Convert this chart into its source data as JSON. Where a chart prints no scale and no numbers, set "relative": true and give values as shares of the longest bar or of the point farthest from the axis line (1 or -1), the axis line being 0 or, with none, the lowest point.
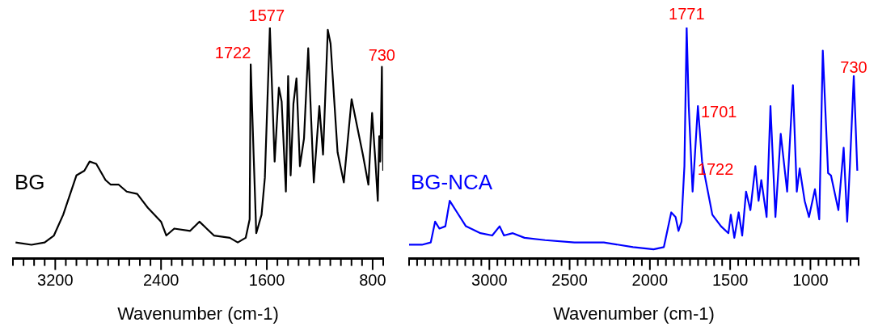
{
  "chart_data": [
    {
      "type": "line",
      "relative": true,
      "xlabel": "Wavenumber (cm-1)",
      "xlim": [
        3520,
        720
      ],
      "xticks": [
        {
          "value": 3520,
          "label": null
        },
        {
          "value": 3440,
          "label": null
        },
        {
          "value": 3360,
          "label": null
        },
        {
          "value": 3280,
          "label": null
        },
        3200,
        {
          "value": 3120,
          "label": null
        },
        {
          "value": 3040,
          "label": null
        },
        {
          "value": 2960,
          "label": null
        },
        {
          "value": 2880,
          "label": null
        },
        {
          "value": 2800,
          "label": null
        },
        {
          "value": 2720,
          "label": null
        },
        {
          "value": 2640,
          "label": null
        },
        {
          "value": 2560,
          "label": null
        },
        {
          "value": 2480,
          "label": null
        },
        2400,
        {
          "value": 2320,
          "label": null
        },
        {
          "value": 2240,
          "label": null
        },
        {
          "value": 2160,
          "label": null
        },
        {
          "value": 2080,
          "label": null
        },
        {
          "value": 2000,
          "label": null
        },
        {
          "value": 1920,
          "label": null
        },
        {
          "value": 1840,
          "label": null
        },
        {
          "value": 1760,
          "label": null
        },
        {
          "value": 1680,
          "label": null
        },
        1600,
        {
          "value": 1520,
          "label": null
        },
        {
          "value": 1440,
          "label": null
        },
        {
          "value": 1360,
          "label": null
        },
        {
          "value": 1280,
          "label": null
        },
        {
          "value": 1200,
          "label": null
        },
        {
          "value": 1120,
          "label": null
        },
        {
          "value": 1040,
          "label": null
        },
        {
          "value": 960,
          "label": null
        },
        {
          "value": 880,
          "label": null
        },
        800,
        {
          "value": 720,
          "label": null
        }
      ],
      "x": [
        3500,
        3380,
        3280,
        3210,
        3140,
        3040,
        2980,
        2940,
        2890,
        2820,
        2780,
        2720,
        2660,
        2580,
        2500,
        2400,
        2360,
        2300,
        2180,
        2110,
        2000,
        1880,
        1820,
        1760,
        1730,
        1722,
        1700,
        1680,
        1640,
        1615,
        1577,
        1541,
        1509,
        1488,
        1456,
        1439,
        1420,
        1399,
        1376,
        1350,
        1319,
        1287,
        1245,
        1203,
        1175,
        1139,
        1118,
        1065,
        1018,
        959,
        874,
        832,
        804,
        779,
        761,
        750,
        742,
        730,
        726,
        723,
        720
      ],
      "series": [
        {
          "name": "BG",
          "color": "#000000",
          "values": [
            0.07,
            0.06,
            0.07,
            0.1,
            0.19,
            0.36,
            0.38,
            0.42,
            0.41,
            0.34,
            0.32,
            0.32,
            0.29,
            0.28,
            0.22,
            0.16,
            0.1,
            0.13,
            0.12,
            0.16,
            0.1,
            0.09,
            0.07,
            0.09,
            0.17,
            0.84,
            0.45,
            0.11,
            0.19,
            0.35,
            1,
            0.42,
            0.74,
            0.68,
            0.29,
            0.79,
            0.36,
            0.67,
            0.78,
            0.4,
            0.52,
            0.91,
            0.33,
            0.66,
            0.45,
            0.99,
            0.93,
            0.46,
            0.33,
            0.69,
            0.45,
            0.32,
            0.63,
            0.42,
            0.25,
            0.53,
            0.42,
            0.83,
            0.52,
            0.59,
            0.38
          ]
        }
      ],
      "annotations": [
        {
          "text": "1722",
          "x": 1722,
          "y": 0.84
        },
        {
          "text": "1577",
          "x": 1577,
          "y": 1
        },
        {
          "text": "730",
          "x": 730,
          "y": 0.83
        }
      ]
    },
    {
      "type": "line",
      "relative": true,
      "xlabel": "Wavenumber (cm-1)",
      "xlim": [
        3500,
        700
      ],
      "xticks": [
        {
          "value": 3500,
          "label": null
        },
        {
          "value": 3450,
          "label": null
        },
        {
          "value": 3400,
          "label": null
        },
        {
          "value": 3350,
          "label": null
        },
        {
          "value": 3300,
          "label": null
        },
        {
          "value": 3250,
          "label": null
        },
        {
          "value": 3200,
          "label": null
        },
        {
          "value": 3150,
          "label": null
        },
        {
          "value": 3100,
          "label": null
        },
        {
          "value": 3050,
          "label": null
        },
        3000,
        {
          "value": 2950,
          "label": null
        },
        {
          "value": 2900,
          "label": null
        },
        {
          "value": 2850,
          "label": null
        },
        {
          "value": 2800,
          "label": null
        },
        {
          "value": 2750,
          "label": null
        },
        {
          "value": 2700,
          "label": null
        },
        {
          "value": 2650,
          "label": null
        },
        {
          "value": 2600,
          "label": null
        },
        {
          "value": 2550,
          "label": null
        },
        2500,
        {
          "value": 2450,
          "label": null
        },
        {
          "value": 2400,
          "label": null
        },
        {
          "value": 2350,
          "label": null
        },
        {
          "value": 2300,
          "label": null
        },
        {
          "value": 2250,
          "label": null
        },
        {
          "value": 2200,
          "label": null
        },
        {
          "value": 2150,
          "label": null
        },
        {
          "value": 2100,
          "label": null
        },
        {
          "value": 2050,
          "label": null
        },
        2000,
        {
          "value": 1950,
          "label": null
        },
        {
          "value": 1900,
          "label": null
        },
        {
          "value": 1850,
          "label": null
        },
        {
          "value": 1800,
          "label": null
        },
        {
          "value": 1750,
          "label": null
        },
        {
          "value": 1700,
          "label": null
        },
        {
          "value": 1650,
          "label": null
        },
        {
          "value": 1600,
          "label": null
        },
        {
          "value": 1550,
          "label": null
        },
        1500,
        {
          "value": 1450,
          "label": null
        },
        {
          "value": 1400,
          "label": null
        },
        {
          "value": 1350,
          "label": null
        },
        {
          "value": 1300,
          "label": null
        },
        {
          "value": 1250,
          "label": null
        },
        {
          "value": 1200,
          "label": null
        },
        {
          "value": 1150,
          "label": null
        },
        {
          "value": 1100,
          "label": null
        },
        {
          "value": 1050,
          "label": null
        },
        1000,
        {
          "value": 950,
          "label": null
        },
        {
          "value": 900,
          "label": null
        },
        {
          "value": 850,
          "label": null
        },
        {
          "value": 800,
          "label": null
        },
        {
          "value": 750,
          "label": null
        },
        {
          "value": 700,
          "label": null
        }
      ],
      "x": [
        3500,
        3420,
        3365,
        3338,
        3311,
        3274,
        3247,
        3201,
        3146,
        3055,
        2982,
        2936,
        2909,
        2854,
        2781,
        2653,
        2470,
        2287,
        2105,
        1977,
        1913,
        1867,
        1840,
        1822,
        1803,
        1785,
        1771,
        1758,
        1734,
        1722,
        1701,
        1675,
        1611,
        1557,
        1511,
        1496,
        1474,
        1447,
        1425,
        1401,
        1374,
        1343,
        1323,
        1306,
        1273,
        1249,
        1218,
        1185,
        1145,
        1109,
        1085,
        1067,
        1036,
        1009,
        972,
        945,
        923,
        890,
        872,
        826,
        793,
        771,
        753,
        730,
        708
      ],
      "series": [
        {
          "name": "BG-NCA",
          "color": "#0000ff",
          "values": [
            0.06,
            0.06,
            0.07,
            0.16,
            0.13,
            0.14,
            0.25,
            0.2,
            0.14,
            0.11,
            0.1,
            0.14,
            0.1,
            0.11,
            0.09,
            0.08,
            0.07,
            0.07,
            0.05,
            0.04,
            0.05,
            0.2,
            0.18,
            0.12,
            0.16,
            0.4,
            1,
            0.66,
            0.29,
            0.42,
            0.66,
            0.42,
            0.19,
            0.14,
            0.11,
            0.19,
            0.09,
            0.2,
            0.1,
            0.29,
            0.21,
            0.4,
            0.25,
            0.34,
            0.18,
            0.66,
            0.18,
            0.54,
            0.29,
            0.75,
            0.29,
            0.39,
            0.25,
            0.18,
            0.3,
            0.17,
            0.9,
            0.37,
            0.36,
            0.21,
            0.48,
            0.16,
            0.42,
            0.79,
            0.38
          ]
        }
      ],
      "annotations": [
        {
          "text": "1771",
          "x": 1771,
          "y": 1
        },
        {
          "text": "1722",
          "x": 1722,
          "y": 0.42
        },
        {
          "text": "1701",
          "x": 1701,
          "y": 0.66
        },
        {
          "text": "730",
          "x": 730,
          "y": 0.79
        }
      ]
    }
  ]
}
